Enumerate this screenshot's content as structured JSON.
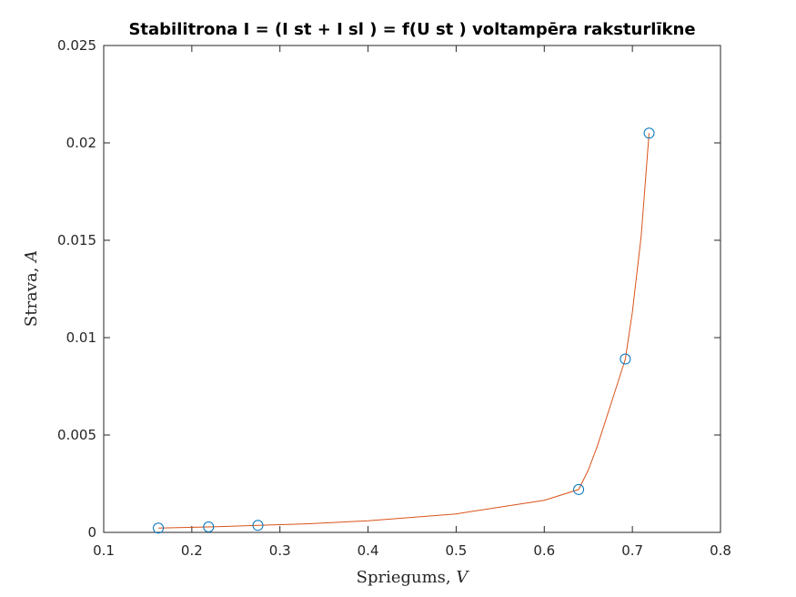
{
  "chart_data": {
    "type": "scatter",
    "title": "Stabilitrona I = (I st + I sl ) = f(U st ) voltampēra raksturlīkne",
    "xlabel": {
      "text": "Spriegums, ",
      "unit": "V"
    },
    "ylabel": {
      "text": "Strava, ",
      "unit": "A"
    },
    "xlim": [
      0.1,
      0.8
    ],
    "ylim": [
      0,
      0.025
    ],
    "xticks": [
      0.1,
      0.2,
      0.3,
      0.4,
      0.5,
      0.6,
      0.7,
      0.8
    ],
    "xtick_labels": [
      "0.1",
      "0.2",
      "0.3",
      "0.4",
      "0.5",
      "0.6",
      "0.7",
      "0.8"
    ],
    "yticks": [
      0,
      0.005,
      0.01,
      0.015,
      0.02,
      0.025
    ],
    "ytick_labels": [
      "0",
      "0.005",
      "0.01",
      "0.015",
      "0.02",
      "0.025"
    ],
    "grid": false,
    "series": [
      {
        "kind": "markers",
        "marker": "circle",
        "color": "#0072BD",
        "x": [
          0.162,
          0.219,
          0.275,
          0.639,
          0.692,
          0.719
        ],
        "y": [
          0.00022,
          0.00028,
          0.00036,
          0.0022,
          0.0089,
          0.0205
        ]
      },
      {
        "kind": "fit-line",
        "color": "#D95319",
        "x": [
          0.162,
          0.219,
          0.275,
          0.33,
          0.4,
          0.5,
          0.6,
          0.639,
          0.65,
          0.66,
          0.67,
          0.68,
          0.692,
          0.7,
          0.71,
          0.719
        ],
        "y": [
          0.00022,
          0.00028,
          0.00036,
          0.00044,
          0.0006,
          0.00095,
          0.00165,
          0.0022,
          0.0032,
          0.0044,
          0.0058,
          0.0072,
          0.0089,
          0.0113,
          0.0152,
          0.0205
        ]
      }
    ]
  }
}
